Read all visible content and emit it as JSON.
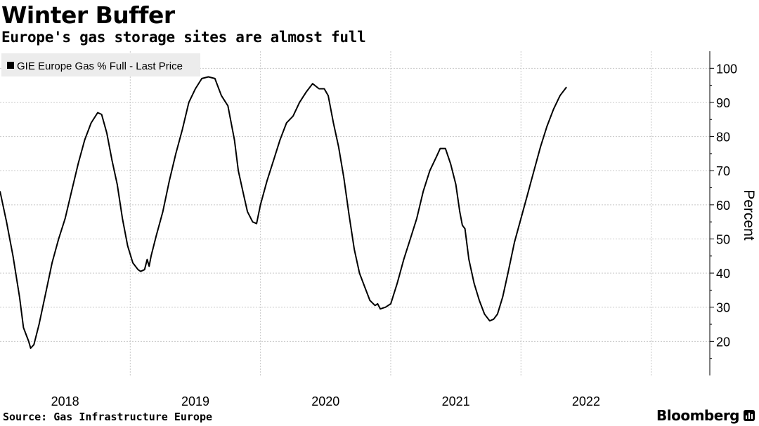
{
  "header": {
    "title": "Winter Buffer",
    "subtitle": "Europe's gas storage sites are almost full"
  },
  "footer": {
    "source": "Source: Gas Infrastructure Europe",
    "brand": "Bloomberg"
  },
  "colors": {
    "line": "#000000",
    "grid": "#c8c8c8",
    "legend_bg": "#ececec"
  },
  "chart_data": {
    "type": "line",
    "title": "Winter Buffer",
    "subtitle": "Europe's gas storage sites are almost full",
    "ylabel": "Percent",
    "xlabel": "",
    "ylim": [
      10,
      105
    ],
    "yticks": [
      20,
      30,
      40,
      50,
      60,
      70,
      80,
      90,
      100
    ],
    "xlim": [
      2017.5,
      2022.95
    ],
    "xticks": [
      {
        "label": "2018",
        "x": 2018
      },
      {
        "label": "2019",
        "x": 2019
      },
      {
        "label": "2020",
        "x": 2020
      },
      {
        "label": "2021",
        "x": 2021
      },
      {
        "label": "2022",
        "x": 2022
      }
    ],
    "grid": true,
    "legend": {
      "position": "top-left"
    },
    "series": [
      {
        "name": "GIE Europe Gas % Full - Last Price",
        "points": [
          [
            2017.5,
            64
          ],
          [
            2017.55,
            55
          ],
          [
            2017.6,
            45
          ],
          [
            2017.65,
            33
          ],
          [
            2017.68,
            24
          ],
          [
            2017.72,
            20
          ],
          [
            2017.735,
            18
          ],
          [
            2017.76,
            19
          ],
          [
            2017.8,
            25
          ],
          [
            2017.85,
            34
          ],
          [
            2017.9,
            43
          ],
          [
            2017.95,
            50
          ],
          [
            2018.0,
            56
          ],
          [
            2018.05,
            64
          ],
          [
            2018.1,
            72
          ],
          [
            2018.15,
            79
          ],
          [
            2018.2,
            84
          ],
          [
            2018.25,
            87
          ],
          [
            2018.28,
            86.5
          ],
          [
            2018.32,
            81
          ],
          [
            2018.36,
            73
          ],
          [
            2018.4,
            66
          ],
          [
            2018.44,
            56
          ],
          [
            2018.48,
            48
          ],
          [
            2018.52,
            43
          ],
          [
            2018.56,
            41
          ],
          [
            2018.58,
            40.5
          ],
          [
            2018.61,
            41
          ],
          [
            2018.63,
            44
          ],
          [
            2018.645,
            42
          ],
          [
            2018.66,
            45
          ],
          [
            2018.7,
            51
          ],
          [
            2018.75,
            58
          ],
          [
            2018.8,
            67
          ],
          [
            2018.85,
            75
          ],
          [
            2018.9,
            82
          ],
          [
            2018.95,
            90
          ],
          [
            2019.0,
            94
          ],
          [
            2019.05,
            97
          ],
          [
            2019.1,
            97.5
          ],
          [
            2019.15,
            97
          ],
          [
            2019.2,
            92
          ],
          [
            2019.25,
            89
          ],
          [
            2019.3,
            79
          ],
          [
            2019.33,
            70
          ],
          [
            2019.37,
            63
          ],
          [
            2019.4,
            58
          ],
          [
            2019.44,
            55
          ],
          [
            2019.47,
            54.5
          ],
          [
            2019.5,
            60
          ],
          [
            2019.55,
            67
          ],
          [
            2019.6,
            73
          ],
          [
            2019.65,
            79
          ],
          [
            2019.7,
            84
          ],
          [
            2019.75,
            86
          ],
          [
            2019.8,
            90
          ],
          [
            2019.85,
            93
          ],
          [
            2019.9,
            95.5
          ],
          [
            2019.95,
            94
          ],
          [
            2019.99,
            94
          ],
          [
            2020.02,
            92
          ],
          [
            2020.06,
            84
          ],
          [
            2020.1,
            77
          ],
          [
            2020.14,
            68
          ],
          [
            2020.18,
            57
          ],
          [
            2020.22,
            47
          ],
          [
            2020.26,
            40
          ],
          [
            2020.3,
            36
          ],
          [
            2020.34,
            32
          ],
          [
            2020.38,
            30.5
          ],
          [
            2020.4,
            31
          ],
          [
            2020.42,
            29.5
          ],
          [
            2020.46,
            30
          ],
          [
            2020.5,
            31
          ],
          [
            2020.55,
            37
          ],
          [
            2020.6,
            44
          ],
          [
            2020.65,
            50
          ],
          [
            2020.7,
            56
          ],
          [
            2020.75,
            64
          ],
          [
            2020.8,
            70
          ],
          [
            2020.85,
            74
          ],
          [
            2020.88,
            76.5
          ],
          [
            2020.92,
            76.5
          ],
          [
            2020.96,
            72
          ],
          [
            2021.0,
            66
          ],
          [
            2021.03,
            58
          ],
          [
            2021.05,
            54
          ],
          [
            2021.07,
            53
          ],
          [
            2021.1,
            44
          ],
          [
            2021.14,
            37
          ],
          [
            2021.18,
            32
          ],
          [
            2021.22,
            28
          ],
          [
            2021.26,
            26
          ],
          [
            2021.29,
            26.5
          ],
          [
            2021.32,
            28
          ],
          [
            2021.36,
            33
          ],
          [
            2021.4,
            40
          ],
          [
            2021.45,
            49
          ],
          [
            2021.5,
            56
          ],
          [
            2021.55,
            63
          ],
          [
            2021.6,
            70
          ],
          [
            2021.65,
            77
          ],
          [
            2021.7,
            83
          ],
          [
            2021.75,
            88
          ],
          [
            2021.8,
            92
          ],
          [
            2021.85,
            94.5
          ]
        ]
      }
    ]
  }
}
